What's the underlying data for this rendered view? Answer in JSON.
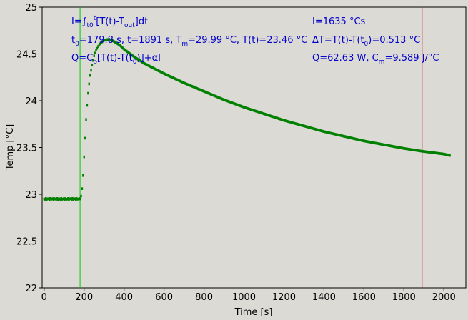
{
  "chart_data": {
    "type": "scatter",
    "title": "",
    "xlabel": "Time [s]",
    "ylabel": "Temp [°C]",
    "xlim": [
      -10,
      2110
    ],
    "ylim": [
      22.0,
      25.0
    ],
    "x_ticks": [
      0,
      200,
      400,
      600,
      800,
      1000,
      1200,
      1400,
      1600,
      1800,
      2000
    ],
    "y_ticks": [
      22,
      22.5,
      23,
      23.5,
      24,
      24.5,
      25
    ],
    "y_tick_labels": [
      "22",
      "22.5",
      "23",
      "23.5",
      "24",
      "24.5",
      "25"
    ],
    "grid": false,
    "series": [
      {
        "color": "#008000",
        "points": [
          [
            0,
            22.95
          ],
          [
            60,
            22.95
          ],
          [
            120,
            22.95
          ],
          [
            179.8,
            22.95
          ],
          [
            185,
            22.98
          ],
          [
            190,
            23.06
          ],
          [
            195,
            23.2
          ],
          [
            200,
            23.4
          ],
          [
            205,
            23.6
          ],
          [
            210,
            23.8
          ],
          [
            215,
            23.95
          ],
          [
            220,
            24.08
          ],
          [
            225,
            24.18
          ],
          [
            230,
            24.27
          ],
          [
            240,
            24.38
          ],
          [
            250,
            24.48
          ],
          [
            260,
            24.54
          ],
          [
            270,
            24.58
          ],
          [
            285,
            24.62
          ],
          [
            300,
            24.645
          ],
          [
            320,
            24.655
          ],
          [
            340,
            24.645
          ],
          [
            360,
            24.62
          ],
          [
            380,
            24.59
          ],
          [
            400,
            24.55
          ],
          [
            450,
            24.47
          ],
          [
            500,
            24.4
          ],
          [
            600,
            24.29
          ],
          [
            700,
            24.19
          ],
          [
            800,
            24.1
          ],
          [
            900,
            24.01
          ],
          [
            1000,
            23.93
          ],
          [
            1100,
            23.86
          ],
          [
            1200,
            23.79
          ],
          [
            1300,
            23.73
          ],
          [
            1400,
            23.67
          ],
          [
            1500,
            23.62
          ],
          [
            1600,
            23.57
          ],
          [
            1700,
            23.53
          ],
          [
            1800,
            23.49
          ],
          [
            1891,
            23.46
          ],
          [
            2000,
            23.43
          ],
          [
            2030,
            23.415
          ]
        ]
      }
    ],
    "vlines": [
      {
        "x": 179.8,
        "color": "#00cc00"
      },
      {
        "x": 1891,
        "color": "#cc0000"
      }
    ],
    "annotations": {
      "line1_left": {
        "a": "I=∫",
        "b": "t0",
        "c": "t",
        "d": "[T(t)-T",
        "e": "out",
        "f": "]dt"
      },
      "line2_left": {
        "a": "t",
        "b": "0",
        "c": "=179.8 s,   t=1891 s,   T",
        "d": "m",
        "e": "=29.99 °C,  T(t)=23.46 °C"
      },
      "line3_left": {
        "a": "Q=C",
        "b": "p",
        "c": "[T(t)-T(t",
        "d": "0",
        "e": ")]+αI"
      },
      "line1_right": "I=1635 °Cs",
      "line2_right": {
        "a": "ΔT=T(t)-T(t",
        "b": "0",
        "c": ")=0.513 °C"
      },
      "line3_right": {
        "a": "Q=62.63 W,   C",
        "b": "m",
        "c": "=9.589 J/°C"
      }
    }
  }
}
